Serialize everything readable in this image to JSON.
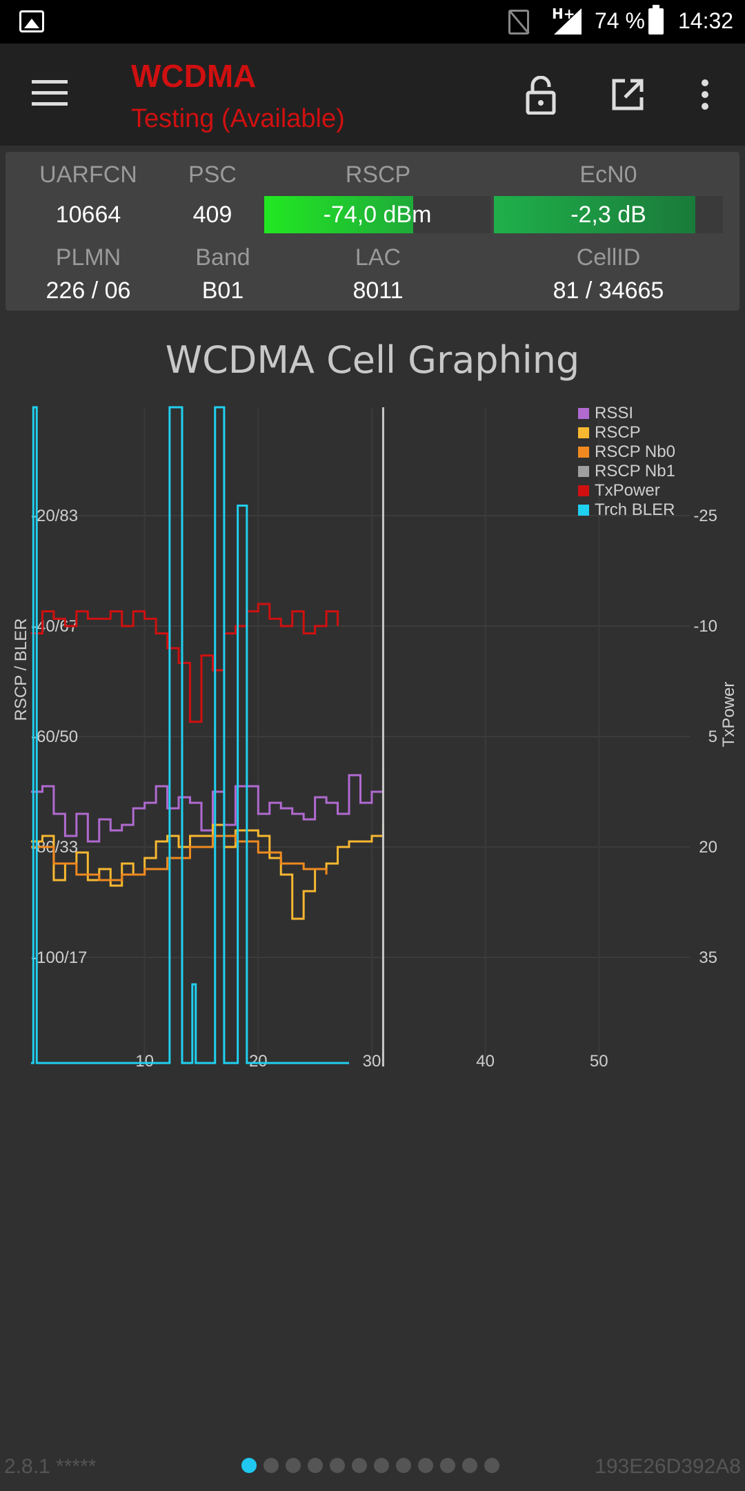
{
  "status_bar": {
    "battery": "74 %",
    "time": "14:32",
    "network": "H+",
    "icons": [
      "image-icon",
      "no-sim-icon",
      "signal-icon",
      "battery-icon"
    ]
  },
  "app_bar": {
    "title": "WCDMA",
    "subtitle": "Testing (Available)",
    "icons": [
      "menu-icon",
      "lock-icon",
      "open-external-icon",
      "more-vert-icon"
    ]
  },
  "cell_info": {
    "headers_row1": {
      "uarfcn": "UARFCN",
      "psc": "PSC",
      "rscp": "RSCP",
      "ecn0": "EcN0"
    },
    "values_row1": {
      "uarfcn": "10664",
      "psc": "409",
      "rscp": "-74,0 dBm",
      "ecn0": "-2,3 dB"
    },
    "rscp_level": 0.66,
    "ecn0_level": 0.88,
    "headers_row2": {
      "plmn": "PLMN",
      "band": "Band",
      "lac": "LAC",
      "cellid": "CellID"
    },
    "values_row2": {
      "plmn": "226 / 06",
      "band": "B01",
      "lac": "8011",
      "cellid": "81 / 34665"
    }
  },
  "colors": {
    "rssi": "#b06ad0",
    "rscp": "#f8b830",
    "rscp_nb0": "#f08a20",
    "rscp_nb1": "#a0a0a0",
    "txpower": "#d01010",
    "trch_bler": "#20d0f0",
    "rscp_bar": "#22dd22",
    "ecn0_bar": "#1fa54a"
  },
  "chart_data": {
    "type": "line",
    "title": "WCDMA Cell Graphing",
    "ylabel": "RSCP / BLER",
    "y2label": "TxPower",
    "xlim": [
      0,
      58
    ],
    "x_ticks": [
      "10",
      "20",
      "30",
      "40",
      "50"
    ],
    "y_left_ticks": [
      "-20/83",
      "-40/67",
      "-60/50",
      "-80/33",
      "-100/17"
    ],
    "y_right_ticks": [
      "-25",
      "-10",
      "5",
      "20",
      "35"
    ],
    "legend_position": "top-right",
    "legend": [
      "RSSI",
      "RSCP",
      "RSCP Nb0",
      "RSCP Nb1",
      "TxPower",
      "Trch BLER"
    ],
    "cursor_x": 31,
    "series": [
      {
        "name": "RSSI",
        "axis": "left",
        "x": [
          0,
          1,
          2,
          3,
          4,
          5,
          6,
          7,
          8,
          9,
          10,
          11,
          12,
          13,
          14,
          15,
          16,
          17,
          18,
          19,
          20,
          21,
          22,
          23,
          24,
          25,
          26,
          27,
          28,
          29,
          30,
          31
        ],
        "y": [
          -70,
          -69,
          -74,
          -78,
          -74,
          -79,
          -75,
          -77,
          -76,
          -73,
          -72,
          -69,
          -73,
          -71,
          -72,
          -77,
          -70,
          -76,
          -69,
          -69,
          -74,
          -72,
          -73,
          -74,
          -75,
          -71,
          -72,
          -74,
          -67,
          -72,
          -70,
          -66
        ]
      },
      {
        "name": "RSCP",
        "axis": "left",
        "x": [
          0,
          1,
          2,
          3,
          4,
          5,
          6,
          7,
          8,
          9,
          10,
          11,
          12,
          13,
          14,
          15,
          16,
          17,
          18,
          19,
          20,
          21,
          22,
          23,
          24,
          25,
          26,
          27,
          28,
          29,
          30,
          31
        ],
        "y": [
          -79,
          -78,
          -86,
          -83,
          -81,
          -86,
          -84,
          -87,
          -83,
          -85,
          -82,
          -79,
          -78,
          -80,
          -78,
          -78,
          -76,
          -80,
          -77,
          -77,
          -78,
          -82,
          -85,
          -93,
          -88,
          -84,
          -83,
          -80,
          -79,
          -79,
          -78,
          -76
        ]
      },
      {
        "name": "RSCP Nb0",
        "axis": "left",
        "x": [
          0,
          2,
          4,
          6,
          8,
          10,
          12,
          14,
          16,
          18,
          20,
          22,
          24,
          26
        ],
        "y": [
          -80,
          -83,
          -85,
          -86,
          -85,
          -84,
          -82,
          -80,
          -78,
          -79,
          -81,
          -83,
          -84,
          -85
        ]
      },
      {
        "name": "TxPower",
        "axis": "right",
        "x": [
          0,
          1,
          2,
          3,
          4,
          5,
          6,
          7,
          8,
          9,
          10,
          11,
          12,
          13,
          14,
          15,
          16,
          17,
          18,
          19,
          20,
          21,
          22,
          23,
          24,
          25,
          26,
          27
        ],
        "y": [
          -9,
          -12,
          -11,
          -10,
          -12,
          -11,
          -11,
          -12,
          -10,
          -12,
          -11,
          -9,
          -7,
          -5,
          3,
          -6,
          -4,
          -9,
          -10,
          -12,
          -13,
          -11,
          -10,
          -12,
          -9,
          -10,
          -12,
          -10
        ]
      },
      {
        "name": "Trch BLER",
        "axis": "left",
        "x": [
          0,
          0.2,
          0.3,
          0.5,
          8,
          12,
          12.2,
          13,
          13.3,
          14,
          14.2,
          14.5,
          15,
          16,
          16.2,
          17,
          17.5,
          18,
          18.2,
          19,
          19.5,
          20,
          25,
          27,
          28
        ],
        "y": [
          0,
          100,
          100,
          0,
          0,
          0,
          100,
          100,
          0,
          0,
          12,
          0,
          0,
          0,
          100,
          0,
          0,
          0,
          85,
          0,
          0,
          0,
          0,
          0,
          0
        ]
      }
    ]
  },
  "footer": {
    "version": "2.8.1 *****",
    "device_id": "193E26D392A8",
    "page_count": 12,
    "active_page": 0
  }
}
